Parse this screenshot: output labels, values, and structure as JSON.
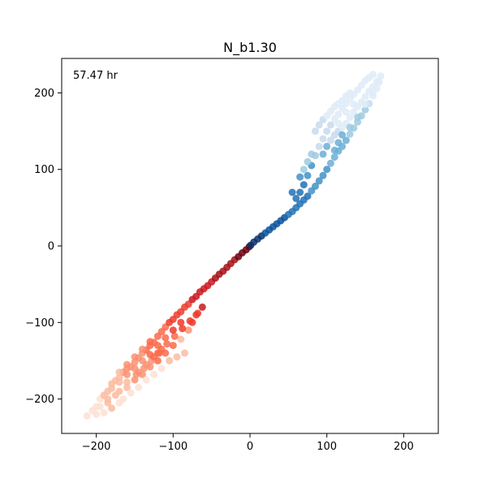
{
  "chart_data": {
    "type": "scatter",
    "title": "N_b1.30",
    "annotation": "57.47 hr",
    "xlabel": "",
    "ylabel": "",
    "xlim": [
      -245,
      245
    ],
    "ylim": [
      -245,
      245
    ],
    "grid": false,
    "x_ticks": [
      -200,
      -100,
      0,
      100,
      200
    ],
    "y_ticks": [
      -200,
      -100,
      0,
      100,
      200
    ],
    "x_tick_labels": [
      "−200",
      "−100",
      "0",
      "100",
      "200"
    ],
    "y_tick_labels": [
      "−200",
      "−100",
      "0",
      "100",
      "200"
    ],
    "series": [
      {
        "colormap": "Reds",
        "points": [
          [
            -212,
            -222
          ],
          [
            -205,
            -215
          ],
          [
            -200,
            -210
          ],
          [
            -195,
            -200
          ],
          [
            -190,
            -195
          ],
          [
            -185,
            -190
          ],
          [
            -180,
            -180
          ],
          [
            -175,
            -176
          ],
          [
            -170,
            -172
          ],
          [
            -165,
            -165
          ],
          [
            -160,
            -160
          ],
          [
            -155,
            -158
          ],
          [
            -150,
            -152
          ],
          [
            -145,
            -146
          ],
          [
            -140,
            -140
          ],
          [
            -135,
            -136
          ],
          [
            -130,
            -130
          ],
          [
            -125,
            -126
          ],
          [
            -120,
            -118
          ],
          [
            -115,
            -112
          ],
          [
            -110,
            -106
          ],
          [
            -105,
            -100
          ],
          [
            -100,
            -96
          ],
          [
            -95,
            -90
          ],
          [
            -90,
            -86
          ],
          [
            -85,
            -80
          ],
          [
            -80,
            -76
          ],
          [
            -75,
            -70
          ],
          [
            -70,
            -66
          ],
          [
            -65,
            -60
          ],
          [
            -60,
            -56
          ],
          [
            -55,
            -52
          ],
          [
            -50,
            -47
          ],
          [
            -45,
            -42
          ],
          [
            -40,
            -37
          ],
          [
            -35,
            -33
          ],
          [
            -30,
            -28
          ],
          [
            -25,
            -23
          ],
          [
            -20,
            -18
          ],
          [
            -15,
            -14
          ],
          [
            -10,
            -9
          ],
          [
            -5,
            -5
          ],
          [
            -1,
            -1
          ],
          [
            -185,
            -200
          ],
          [
            -175,
            -195
          ],
          [
            -160,
            -185
          ],
          [
            -150,
            -175
          ],
          [
            -140,
            -168
          ],
          [
            -130,
            -158
          ],
          [
            -120,
            -150
          ],
          [
            -110,
            -140
          ],
          [
            -100,
            -130
          ],
          [
            -90,
            -122
          ],
          [
            -80,
            -110
          ],
          [
            -75,
            -100
          ],
          [
            -70,
            -90
          ],
          [
            -85,
            -140
          ],
          [
            -95,
            -145
          ],
          [
            -105,
            -150
          ],
          [
            -115,
            -160
          ],
          [
            -125,
            -168
          ],
          [
            -135,
            -175
          ],
          [
            -145,
            -185
          ],
          [
            -155,
            -192
          ],
          [
            -165,
            -200
          ],
          [
            -170,
            -205
          ],
          [
            -180,
            -212
          ],
          [
            -190,
            -218
          ],
          [
            -200,
            -220
          ],
          [
            -195,
            -210
          ],
          [
            -185,
            -205
          ],
          [
            -170,
            -190
          ],
          [
            -160,
            -178
          ],
          [
            -148,
            -168
          ],
          [
            -138,
            -160
          ],
          [
            -128,
            -150
          ],
          [
            -118,
            -140
          ],
          [
            -108,
            -128
          ],
          [
            -98,
            -118
          ],
          [
            -88,
            -108
          ],
          [
            -78,
            -98
          ],
          [
            -68,
            -88
          ],
          [
            -62,
            -80
          ],
          [
            -140,
            -150
          ],
          [
            -150,
            -160
          ],
          [
            -160,
            -168
          ],
          [
            -170,
            -178
          ],
          [
            -180,
            -186
          ],
          [
            -130,
            -142
          ],
          [
            -120,
            -130
          ],
          [
            -110,
            -120
          ],
          [
            -100,
            -110
          ],
          [
            -90,
            -100
          ],
          [
            -120,
            -140
          ],
          [
            -125,
            -145
          ],
          [
            -135,
            -155
          ],
          [
            -145,
            -165
          ],
          [
            -115,
            -135
          ],
          [
            -160,
            -155
          ],
          [
            -170,
            -165
          ],
          [
            -150,
            -145
          ],
          [
            -140,
            -135
          ],
          [
            -130,
            -125
          ]
        ]
      },
      {
        "colormap": "Blues",
        "points": [
          [
            1,
            1
          ],
          [
            5,
            5
          ],
          [
            10,
            9
          ],
          [
            15,
            13
          ],
          [
            20,
            17
          ],
          [
            25,
            21
          ],
          [
            30,
            25
          ],
          [
            35,
            29
          ],
          [
            40,
            33
          ],
          [
            45,
            37
          ],
          [
            50,
            41
          ],
          [
            55,
            45
          ],
          [
            60,
            50
          ],
          [
            65,
            55
          ],
          [
            70,
            60
          ],
          [
            75,
            65
          ],
          [
            80,
            72
          ],
          [
            85,
            78
          ],
          [
            90,
            85
          ],
          [
            95,
            92
          ],
          [
            100,
            100
          ],
          [
            105,
            108
          ],
          [
            110,
            116
          ],
          [
            115,
            124
          ],
          [
            120,
            130
          ],
          [
            125,
            138
          ],
          [
            130,
            146
          ],
          [
            135,
            154
          ],
          [
            140,
            162
          ],
          [
            145,
            170
          ],
          [
            150,
            178
          ],
          [
            155,
            186
          ],
          [
            160,
            196
          ],
          [
            165,
            206
          ],
          [
            168,
            214
          ],
          [
            170,
            222
          ],
          [
            60,
            62
          ],
          [
            65,
            70
          ],
          [
            70,
            80
          ],
          [
            75,
            92
          ],
          [
            80,
            105
          ],
          [
            85,
            118
          ],
          [
            90,
            130
          ],
          [
            95,
            140
          ],
          [
            100,
            150
          ],
          [
            105,
            158
          ],
          [
            110,
            166
          ],
          [
            115,
            172
          ],
          [
            120,
            180
          ],
          [
            125,
            186
          ],
          [
            130,
            192
          ],
          [
            135,
            198
          ],
          [
            140,
            204
          ],
          [
            145,
            210
          ],
          [
            150,
            216
          ],
          [
            155,
            220
          ],
          [
            160,
            224
          ],
          [
            85,
            150
          ],
          [
            90,
            158
          ],
          [
            95,
            165
          ],
          [
            100,
            170
          ],
          [
            105,
            176
          ],
          [
            110,
            182
          ],
          [
            115,
            186
          ],
          [
            120,
            190
          ],
          [
            125,
            196
          ],
          [
            130,
            200
          ],
          [
            75,
            110
          ],
          [
            80,
            120
          ],
          [
            70,
            100
          ],
          [
            65,
            90
          ],
          [
            55,
            70
          ],
          [
            100,
            130
          ],
          [
            105,
            138
          ],
          [
            110,
            145
          ],
          [
            115,
            150
          ],
          [
            120,
            155
          ],
          [
            125,
            160
          ],
          [
            130,
            168
          ],
          [
            135,
            175
          ],
          [
            140,
            182
          ],
          [
            145,
            188
          ],
          [
            150,
            195
          ],
          [
            155,
            202
          ],
          [
            160,
            208
          ],
          [
            165,
            215
          ],
          [
            95,
            120
          ],
          [
            110,
            125
          ],
          [
            115,
            135
          ],
          [
            120,
            145
          ],
          [
            130,
            155
          ],
          [
            140,
            168
          ],
          [
            150,
            185
          ],
          [
            160,
            200
          ],
          [
            135,
            185
          ],
          [
            125,
            175
          ],
          [
            115,
            160
          ]
        ]
      }
    ]
  }
}
